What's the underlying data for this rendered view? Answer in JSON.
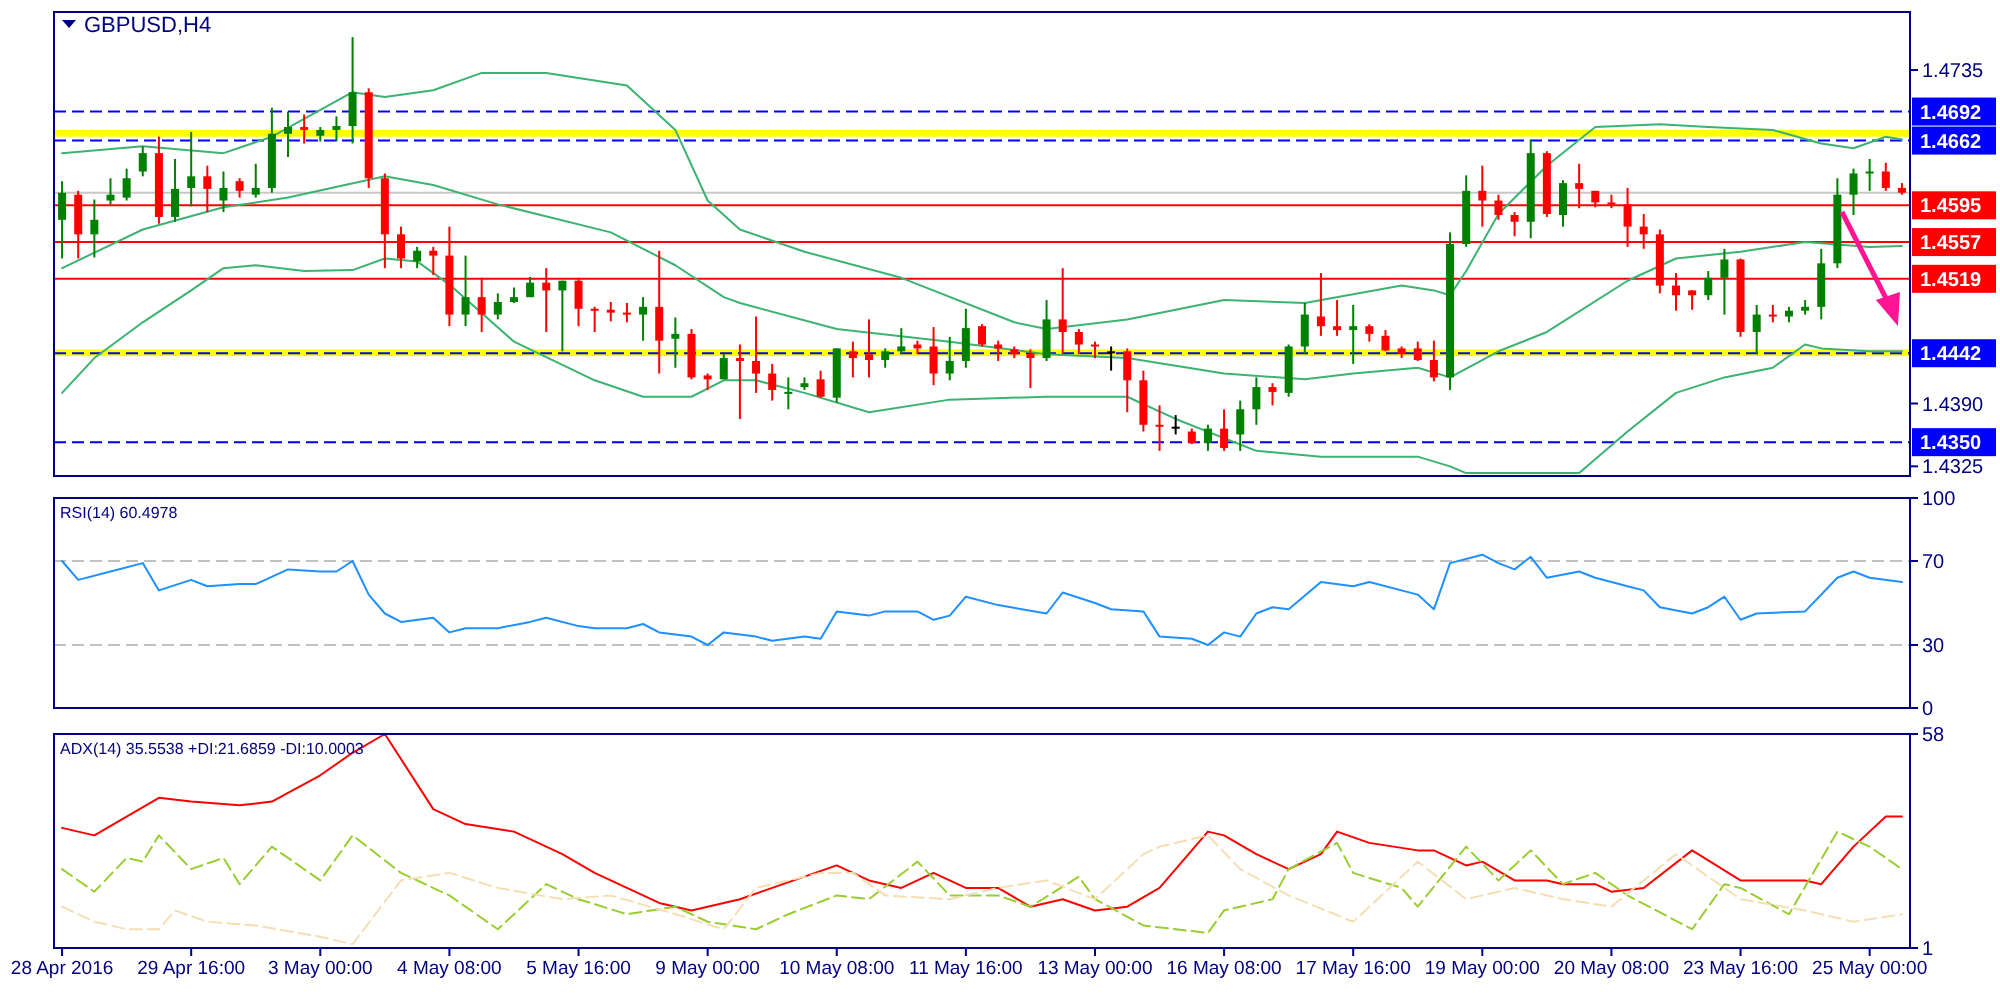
{
  "chart_data": [
    {
      "type": "candlestick",
      "title": "GBPUSD,H4",
      "categories": [
        null,
        null,
        null,
        null,
        null,
        null,
        null,
        null,
        null,
        null,
        null,
        null,
        null,
        null,
        null,
        null,
        null,
        null,
        null,
        null,
        null,
        null,
        null,
        null,
        null,
        null,
        null,
        null,
        null,
        null,
        null,
        null,
        null,
        null,
        null,
        null,
        null,
        null,
        null,
        null,
        null,
        null,
        null,
        null,
        null,
        null,
        null,
        null,
        null,
        null,
        null,
        null,
        null,
        null,
        null,
        null,
        null,
        null,
        null,
        null,
        null,
        null,
        null,
        null,
        null,
        null,
        null,
        null,
        null,
        null,
        null,
        null,
        null,
        null,
        null,
        null,
        null,
        null,
        null,
        null,
        null,
        null,
        null,
        null,
        null,
        null,
        null,
        null,
        null,
        null,
        null,
        null,
        null,
        null,
        null,
        null,
        null,
        null,
        null,
        null,
        null,
        null,
        null,
        null,
        null,
        null,
        null,
        null,
        null,
        null,
        null,
        null,
        null,
        null,
        null
      ],
      "ohlc": [
        [
          1.458,
          1.462,
          1.454,
          1.4608
        ],
        [
          1.4606,
          1.461,
          1.454,
          1.4565
        ],
        [
          1.4565,
          1.4601,
          1.4541,
          1.458
        ],
        [
          1.46,
          1.4623,
          1.4596,
          1.4606
        ],
        [
          1.4603,
          1.4633,
          1.46,
          1.4623
        ],
        [
          1.463,
          1.4656,
          1.4625,
          1.4649
        ],
        [
          1.4649,
          1.4666,
          1.4576,
          1.4583
        ],
        [
          1.4583,
          1.4643,
          1.4578,
          1.4612
        ],
        [
          1.4613,
          1.4671,
          1.4594,
          1.4625
        ],
        [
          1.4625,
          1.4636,
          1.4588,
          1.4612
        ],
        [
          1.46,
          1.463,
          1.4588,
          1.4613
        ],
        [
          1.462,
          1.4623,
          1.4603,
          1.461
        ],
        [
          1.4606,
          1.4638,
          1.4603,
          1.4613
        ],
        [
          1.4613,
          1.4696,
          1.4608,
          1.4669
        ],
        [
          1.4669,
          1.4692,
          1.4645,
          1.4676
        ],
        [
          1.4676,
          1.4689,
          1.4659,
          1.4673
        ],
        [
          1.4667,
          1.4676,
          1.4661,
          1.4673
        ],
        [
          1.4673,
          1.4687,
          1.4661,
          1.4677
        ],
        [
          1.4677,
          1.4769,
          1.4659,
          1.4712
        ],
        [
          1.4712,
          1.4716,
          1.4613,
          1.4623
        ],
        [
          1.4623,
          1.4628,
          1.453,
          1.4565
        ],
        [
          1.4565,
          1.4573,
          1.453,
          1.454
        ],
        [
          1.4537,
          1.4552,
          1.453,
          1.4548
        ],
        [
          1.4548,
          1.4552,
          1.4523,
          1.4543
        ],
        [
          1.4543,
          1.4573,
          1.447,
          1.4482
        ],
        [
          1.4482,
          1.4543,
          1.447,
          1.45
        ],
        [
          1.45,
          1.452,
          1.4464,
          1.4482
        ],
        [
          1.4482,
          1.4504,
          1.4477,
          1.4495
        ],
        [
          1.4495,
          1.451,
          1.4494,
          1.45
        ],
        [
          1.45,
          1.4521,
          1.45,
          1.4515
        ],
        [
          1.4515,
          1.453,
          1.4464,
          1.4507
        ],
        [
          1.4507,
          1.4517,
          1.4444,
          1.4517
        ],
        [
          1.4517,
          1.452,
          1.447,
          1.4488
        ],
        [
          1.4488,
          1.449,
          1.4464,
          1.4487
        ],
        [
          1.4487,
          1.4495,
          1.4475,
          1.4484
        ],
        [
          1.4484,
          1.4494,
          1.4474,
          1.4482
        ],
        [
          1.4482,
          1.45,
          1.4455,
          1.449
        ],
        [
          1.449,
          1.4548,
          1.4421,
          1.4455
        ],
        [
          1.4457,
          1.4479,
          1.4427,
          1.4462
        ],
        [
          1.4462,
          1.4467,
          1.4415,
          1.4417
        ],
        [
          1.4419,
          1.4421,
          1.4404,
          1.4415
        ],
        [
          1.4415,
          1.4441,
          1.4415,
          1.4437
        ],
        [
          1.4437,
          1.4451,
          1.4374,
          1.4434
        ],
        [
          1.4434,
          1.448,
          1.4401,
          1.4421
        ],
        [
          1.4421,
          1.4431,
          1.4393,
          1.4404
        ],
        [
          1.4401,
          1.4417,
          1.4384,
          1.4402
        ],
        [
          1.4407,
          1.4417,
          1.4404,
          1.4411
        ],
        [
          1.4415,
          1.4424,
          1.4396,
          1.4397
        ],
        [
          1.4396,
          1.4447,
          1.4391,
          1.4447
        ],
        [
          1.4444,
          1.4454,
          1.4417,
          1.4437
        ],
        [
          1.4441,
          1.4477,
          1.4417,
          1.4435
        ],
        [
          1.4435,
          1.4447,
          1.4427,
          1.4444
        ],
        [
          1.4444,
          1.4468,
          1.4441,
          1.4449
        ],
        [
          1.4451,
          1.4455,
          1.4441,
          1.4447
        ],
        [
          1.4449,
          1.4469,
          1.4409,
          1.4421
        ],
        [
          1.4421,
          1.4459,
          1.4414,
          1.4434
        ],
        [
          1.4434,
          1.4488,
          1.4427,
          1.4468
        ],
        [
          1.447,
          1.4472,
          1.4449,
          1.4451
        ],
        [
          1.4451,
          1.4455,
          1.4434,
          1.4447
        ],
        [
          1.4446,
          1.4449,
          1.4437,
          1.4441
        ],
        [
          1.4441,
          1.4446,
          1.4406,
          1.4437
        ],
        [
          1.4437,
          1.4497,
          1.4434,
          1.4477
        ],
        [
          1.4477,
          1.453,
          1.4441,
          1.4464
        ],
        [
          1.4464,
          1.4467,
          1.4441,
          1.4451
        ],
        [
          1.4451,
          1.4454,
          1.4437,
          1.4449
        ],
        [
          1.4444,
          1.4449,
          1.4424,
          1.4444
        ],
        [
          1.4444,
          1.4447,
          1.4381,
          1.4414
        ],
        [
          1.4414,
          1.4424,
          1.4361,
          1.4368
        ],
        [
          1.4368,
          1.4388,
          1.4341,
          1.4366
        ],
        [
          1.4366,
          1.4378,
          1.4358,
          1.4366
        ],
        [
          1.4361,
          1.4364,
          1.4348,
          1.4349
        ],
        [
          1.4349,
          1.4368,
          1.4341,
          1.4364
        ],
        [
          1.4364,
          1.4384,
          1.4341,
          1.4344
        ],
        [
          1.4358,
          1.4393,
          1.4341,
          1.4384
        ],
        [
          1.4384,
          1.4417,
          1.4368,
          1.4407
        ],
        [
          1.4407,
          1.4411,
          1.4388,
          1.4402
        ],
        [
          1.4401,
          1.4451,
          1.4397,
          1.4449
        ],
        [
          1.4449,
          1.4494,
          1.4441,
          1.4482
        ],
        [
          1.448,
          1.4525,
          1.446,
          1.447
        ],
        [
          1.447,
          1.4497,
          1.446,
          1.4466
        ],
        [
          1.4466,
          1.4492,
          1.4431,
          1.447
        ],
        [
          1.447,
          1.4472,
          1.4454,
          1.4462
        ],
        [
          1.446,
          1.4466,
          1.4444,
          1.4445
        ],
        [
          1.4447,
          1.4449,
          1.4437,
          1.4441
        ],
        [
          1.4447,
          1.4454,
          1.4434,
          1.4435
        ],
        [
          1.4435,
          1.4455,
          1.4413,
          1.4417
        ],
        [
          1.4417,
          1.4567,
          1.4404,
          1.4555
        ],
        [
          1.4555,
          1.4626,
          1.4552,
          1.461
        ],
        [
          1.461,
          1.4636,
          1.4573,
          1.46
        ],
        [
          1.46,
          1.4606,
          1.458,
          1.4585
        ],
        [
          1.4585,
          1.4588,
          1.4563,
          1.4578
        ],
        [
          1.4578,
          1.4663,
          1.4561,
          1.4649
        ],
        [
          1.4649,
          1.4651,
          1.4583,
          1.4586
        ],
        [
          1.4585,
          1.4621,
          1.4573,
          1.4618
        ],
        [
          1.4618,
          1.4638,
          1.4592,
          1.4612
        ],
        [
          1.461,
          1.461,
          1.4593,
          1.4598
        ],
        [
          1.4598,
          1.4606,
          1.4592,
          1.4596
        ],
        [
          1.4596,
          1.4613,
          1.4552,
          1.4573
        ],
        [
          1.4573,
          1.4586,
          1.455,
          1.4565
        ],
        [
          1.4565,
          1.457,
          1.4504,
          1.4512
        ],
        [
          1.4512,
          1.4525,
          1.4486,
          1.4502
        ],
        [
          1.4507,
          1.4507,
          1.4487,
          1.4502
        ],
        [
          1.4502,
          1.4527,
          1.4497,
          1.452
        ],
        [
          1.452,
          1.455,
          1.4482,
          1.4539
        ],
        [
          1.4539,
          1.454,
          1.4459,
          1.4464
        ],
        [
          1.4464,
          1.4492,
          1.4441,
          1.4482
        ],
        [
          1.4482,
          1.4492,
          1.4474,
          1.448
        ],
        [
          1.448,
          1.449,
          1.4474,
          1.4486
        ],
        [
          1.4486,
          1.4497,
          1.4482,
          1.449
        ],
        [
          1.449,
          1.455,
          1.4477,
          1.4535
        ],
        [
          1.4535,
          1.4623,
          1.453,
          1.4606
        ],
        [
          1.4606,
          1.4633,
          1.4585,
          1.4628
        ],
        [
          1.4628,
          1.4643,
          1.461,
          1.463
        ],
        [
          1.463,
          1.4639,
          1.461,
          1.4613
        ],
        [
          1.4613,
          1.4618,
          1.4606,
          1.4608
        ]
      ],
      "colors": [
        "#008000",
        "#ff0000",
        "#008000",
        "#008000",
        "#008000",
        "#008000",
        "#ff0000",
        "#008000",
        "#008000",
        "#ff0000",
        "#008000",
        "#ff0000",
        "#008000",
        "#008000",
        "#008000",
        "#ff0000",
        "#008000",
        "#008000",
        "#008000",
        "#ff0000",
        "#ff0000",
        "#ff0000",
        "#008000",
        "#ff0000",
        "#ff0000",
        "#008000",
        "#ff0000",
        "#008000",
        "#008000",
        "#008000",
        "#ff0000",
        "#008000",
        "#ff0000",
        "#ff0000",
        "#ff0000",
        "#ff0000",
        "#008000",
        "#ff0000",
        "#008000",
        "#ff0000",
        "#ff0000",
        "#008000",
        "#ff0000",
        "#ff0000",
        "#ff0000",
        "#008000",
        "#008000",
        "#ff0000",
        "#008000",
        "#ff0000",
        "#ff0000",
        "#008000",
        "#008000",
        "#ff0000",
        "#ff0000",
        "#008000",
        "#008000",
        "#ff0000",
        "#ff0000",
        "#ff0000",
        "#ff0000",
        "#008000",
        "#ff0000",
        "#ff0000",
        "#ff0000",
        "#000000",
        "#ff0000",
        "#ff0000",
        "#ff0000",
        "#000000",
        "#ff0000",
        "#008000",
        "#ff0000",
        "#008000",
        "#008000",
        "#ff0000",
        "#008000",
        "#008000",
        "#ff0000",
        "#ff0000",
        "#008000",
        "#ff0000",
        "#ff0000",
        "#ff0000",
        "#ff0000",
        "#ff0000",
        "#008000",
        "#008000",
        "#ff0000",
        "#ff0000",
        "#ff0000",
        "#008000",
        "#ff0000",
        "#008000",
        "#ff0000",
        "#ff0000",
        "#ff0000",
        "#ff0000",
        "#ff0000",
        "#ff0000",
        "#ff0000",
        "#ff0000",
        "#008000",
        "#008000",
        "#ff0000",
        "#008000",
        "#ff0000",
        "#008000",
        "#008000",
        "#008000",
        "#008000",
        "#008000",
        "#008000",
        "#ff0000",
        "#ff0000"
      ],
      "series": [
        {
          "type": "line",
          "color": "#3cb371",
          "values": [
            1.4649,
            null,
            null,
            null,
            null,
            1.4656,
            null,
            null,
            null,
            null,
            1.4649,
            null,
            null,
            1.4666,
            null,
            null,
            null,
            null,
            1.4712,
            null,
            1.4707,
            null,
            null,
            1.4714,
            null,
            null,
            1.4732,
            null,
            null,
            null,
            1.4732,
            null,
            null,
            null,
            null,
            1.4719,
            null,
            null,
            1.4673,
            null,
            1.46,
            null,
            1.457,
            null,
            null,
            null,
            1.4547,
            null,
            null,
            null,
            null,
            null,
            1.452,
            null,
            null,
            null,
            null,
            null,
            null,
            1.4474,
            null,
            1.4467,
            null,
            null,
            null,
            null,
            1.4477,
            null,
            null,
            null,
            null,
            null,
            1.4497,
            null,
            null,
            null,
            null,
            1.4494,
            null,
            null,
            null,
            null,
            null,
            1.4512,
            null,
            1.4507,
            1.4502,
            1.4527,
            null,
            1.4586,
            null,
            null,
            1.4636,
            null,
            null,
            1.4676,
            null,
            null,
            null,
            1.4679,
            null,
            null,
            1.4676,
            null,
            null,
            null,
            1.4673,
            null,
            null,
            1.4659,
            null,
            1.4654,
            null,
            1.4666,
            1.4663
          ]
        },
        {
          "type": "line",
          "color": "#3cb371",
          "values": [
            1.453,
            null,
            null,
            null,
            null,
            1.457,
            null,
            null,
            null,
            null,
            1.4593,
            null,
            null,
            null,
            1.4603,
            null,
            null,
            null,
            null,
            null,
            1.4625,
            null,
            null,
            1.4616,
            null,
            null,
            null,
            1.4596,
            null,
            null,
            null,
            null,
            null,
            null,
            1.4567,
            null,
            null,
            null,
            1.4533,
            null,
            null,
            1.45,
            1.4494,
            null,
            null,
            null,
            null,
            null,
            1.4467,
            null,
            null,
            null,
            null,
            null,
            null,
            1.4454,
            null,
            null,
            null,
            null,
            null,
            1.4441,
            null,
            null,
            null,
            null,
            1.4437,
            null,
            null,
            null,
            null,
            null,
            1.4421,
            null,
            null,
            null,
            null,
            1.4415,
            null,
            null,
            1.4421,
            null,
            null,
            null,
            1.4427,
            null,
            1.4417,
            null,
            null,
            1.4444,
            null,
            null,
            1.4464,
            null,
            null,
            null,
            null,
            1.4517,
            null,
            null,
            1.454,
            null,
            null,
            null,
            1.4547,
            null,
            null,
            null,
            1.4557,
            null,
            null,
            null,
            1.4552,
            null,
            1.4553
          ]
        },
        {
          "type": "line",
          "color": "#3cb371",
          "values": [
            1.4401,
            null,
            1.4437,
            null,
            null,
            1.4474,
            null,
            null,
            1.4507,
            null,
            1.453,
            null,
            1.4533,
            null,
            null,
            1.4527,
            null,
            null,
            1.4528,
            null,
            1.454,
            null,
            1.4537,
            null,
            1.4513,
            null,
            null,
            null,
            1.4454,
            null,
            null,
            null,
            null,
            1.4414,
            null,
            null,
            1.4397,
            null,
            null,
            1.4397,
            null,
            1.4414,
            null,
            1.4414,
            null,
            null,
            1.4401,
            null,
            null,
            null,
            1.4381,
            null,
            null,
            null,
            null,
            1.4394,
            null,
            null,
            null,
            null,
            null,
            1.4397,
            null,
            null,
            null,
            null,
            1.4397,
            null,
            null,
            1.4374,
            null,
            null,
            null,
            null,
            1.4341,
            null,
            null,
            null,
            1.4335,
            null,
            null,
            null,
            null,
            null,
            1.4335,
            null,
            1.4325,
            1.4318,
            null,
            null,
            null,
            null,
            null,
            null,
            1.4318,
            null,
            null,
            1.4361,
            null,
            null,
            1.4401,
            null,
            null,
            1.4417,
            null,
            null,
            1.4427,
            null,
            1.4451,
            1.4447,
            null,
            null,
            1.4444,
            null,
            1.4444
          ]
        }
      ],
      "ylim": [
        1.4315,
        1.4795
      ],
      "yticks": [
        1.4735,
        {
          "value": 1.439,
          "label": "1.4390"
        },
        1.4325
      ],
      "tick_labels": "y",
      "bands": [
        {
          "axis": "y",
          "from": 1.4666,
          "to": 1.4673,
          "color": "#ffff00"
        },
        {
          "axis": "y",
          "from": 1.4439,
          "to": 1.4446,
          "color": "#ffff00"
        }
      ],
      "ref_lines": [
        {
          "axis": "y",
          "value": 1.4608,
          "color": "#c8c8c8",
          "line_style": "solid"
        },
        {
          "axis": "y",
          "value": 1.4692,
          "label": "1.4692",
          "color": "#0000ff",
          "line_style": "dashed"
        },
        {
          "axis": "y",
          "value": 1.4662,
          "label": "1.4662",
          "color": "#0000ff",
          "line_style": "dashed"
        },
        {
          "axis": "y",
          "value": 1.4595,
          "label": "1.4595",
          "color": "#ff0000",
          "line_style": "solid"
        },
        {
          "axis": "y",
          "value": 1.4557,
          "label": "1.4557",
          "color": "#ff0000",
          "line_style": "solid"
        },
        {
          "axis": "y",
          "value": 1.4519,
          "label": "1.4519",
          "color": "#ff0000",
          "line_style": "solid"
        },
        {
          "axis": "y",
          "value": 1.4442,
          "label": "1.4442",
          "color": "#0000ff",
          "line_style": "dashed"
        },
        {
          "axis": "y",
          "value": 1.435,
          "label": "1.4350",
          "color": "#0000ff",
          "line_style": "dashed"
        }
      ]
    },
    {
      "type": "line",
      "title": "RSI(14) 60.4978",
      "categories": [
        null,
        null,
        null,
        null,
        null,
        null,
        null,
        null,
        null,
        null,
        null,
        null,
        null,
        null,
        null,
        null,
        null,
        null,
        null,
        null,
        null,
        null,
        null,
        null,
        null,
        null,
        null,
        null,
        null,
        null,
        null,
        null,
        null,
        null,
        null,
        null,
        null,
        null,
        null,
        null,
        null,
        null,
        null,
        null,
        null,
        null,
        null,
        null,
        null,
        null,
        null,
        null,
        null,
        null,
        null,
        null,
        null,
        null,
        null,
        null,
        null,
        null,
        null,
        null,
        null,
        null,
        null,
        null,
        null,
        null,
        null,
        null,
        null,
        null,
        null,
        null,
        null,
        null,
        null,
        null,
        null,
        null,
        null,
        null,
        null,
        null,
        null,
        null,
        null,
        null,
        null,
        null,
        null,
        null,
        null,
        null,
        null,
        null,
        null,
        null,
        null,
        null,
        null,
        null,
        null,
        null,
        null,
        null,
        null,
        null,
        null,
        null,
        null,
        null,
        null
      ],
      "series": [
        {
          "color": "#1e90ff",
          "values": [
            70,
            61,
            null,
            65,
            null,
            69,
            56,
            null,
            61,
            58,
            null,
            59,
            59,
            null,
            66,
            null,
            65,
            65,
            70,
            54,
            45,
            41,
            null,
            43,
            36,
            38,
            null,
            38,
            null,
            41,
            43,
            null,
            39,
            38,
            null,
            38,
            40,
            36,
            null,
            34,
            30,
            36,
            null,
            34,
            32,
            null,
            34,
            33,
            46,
            null,
            44,
            46,
            null,
            46,
            42,
            44,
            53,
            null,
            49,
            null,
            null,
            45,
            55,
            null,
            50,
            47,
            null,
            46,
            34,
            null,
            33,
            30,
            36,
            34,
            45,
            48,
            47,
            null,
            60,
            null,
            58,
            60,
            null,
            null,
            54,
            47,
            69,
            null,
            73,
            69,
            66,
            72,
            62,
            null,
            65,
            62,
            null,
            58,
            56,
            48,
            null,
            45,
            48,
            53,
            42,
            45,
            null,
            null,
            46,
            null,
            62,
            65,
            62,
            null,
            60
          ]
        }
      ],
      "ylim": [
        0,
        100
      ],
      "yticks": [
        0,
        30,
        70,
        100
      ],
      "tick_labels": "y",
      "ref_lines": [
        {
          "axis": "y",
          "value": 70,
          "color": "#c0c0c0",
          "line_style": "dashed"
        },
        {
          "axis": "y",
          "value": 30,
          "color": "#c0c0c0",
          "line_style": "dashed"
        }
      ]
    },
    {
      "type": "line",
      "title": "ADX(14) 35.5538 +DI:21.6859 -DI:10.0003",
      "categories": [
        "28 Apr 2016",
        null,
        null,
        null,
        null,
        null,
        null,
        null,
        "29 Apr 16:00",
        null,
        null,
        null,
        null,
        null,
        null,
        null,
        "3 May 00:00",
        null,
        null,
        null,
        null,
        null,
        null,
        null,
        "4 May 08:00",
        null,
        null,
        null,
        null,
        null,
        null,
        null,
        "5 May 16:00",
        null,
        null,
        null,
        null,
        null,
        null,
        null,
        "9 May 00:00",
        null,
        null,
        null,
        null,
        null,
        null,
        null,
        "10 May 08:00",
        null,
        null,
        null,
        null,
        null,
        null,
        null,
        "11 May 16:00",
        null,
        null,
        null,
        null,
        null,
        null,
        null,
        "13 May 00:00",
        null,
        null,
        null,
        null,
        null,
        null,
        null,
        "16 May 08:00",
        null,
        null,
        null,
        null,
        null,
        null,
        null,
        "17 May 16:00",
        null,
        null,
        null,
        null,
        null,
        null,
        null,
        "19 May 00:00",
        null,
        null,
        null,
        null,
        null,
        null,
        null,
        "20 May 08:00",
        null,
        null,
        null,
        null,
        null,
        null,
        null,
        "23 May 16:00",
        null,
        null,
        null,
        null,
        null,
        null,
        null,
        "25 May 00:00",
        null,
        null
      ],
      "series": [
        {
          "color": "#ff0000",
          "line_style": "solid",
          "values": [
            33,
            null,
            31,
            null,
            null,
            null,
            41,
            null,
            40,
            null,
            null,
            39,
            null,
            40,
            null,
            null,
            47,
            null,
            53,
            null,
            58,
            null,
            null,
            38,
            null,
            34,
            null,
            null,
            32,
            null,
            null,
            26,
            null,
            21,
            null,
            17,
            15,
            13,
            null,
            11,
            12,
            null,
            14,
            null,
            17,
            null,
            null,
            null,
            23,
            null,
            19,
            null,
            17,
            null,
            21,
            null,
            17,
            null,
            17,
            null,
            12,
            null,
            14,
            null,
            11,
            null,
            12,
            null,
            17,
            null,
            null,
            32,
            31,
            null,
            26,
            null,
            22,
            null,
            26,
            32,
            null,
            29,
            null,
            null,
            27,
            27,
            null,
            23,
            24,
            null,
            19,
            null,
            19,
            18,
            null,
            18,
            16,
            null,
            17,
            null,
            null,
            27,
            null,
            null,
            19,
            null,
            null,
            null,
            19,
            18,
            null,
            28,
            null,
            36,
            36
          ]
        },
        {
          "color": "#9acd32",
          "line_style": "dashed",
          "values": [
            22,
            null,
            16,
            null,
            25,
            24,
            31,
            null,
            22,
            null,
            25,
            18,
            null,
            28,
            null,
            null,
            19,
            null,
            31,
            null,
            null,
            21,
            null,
            null,
            15,
            null,
            null,
            6,
            null,
            null,
            18,
            null,
            14,
            null,
            null,
            10,
            null,
            null,
            12,
            null,
            8,
            null,
            null,
            6,
            null,
            10,
            null,
            null,
            15,
            null,
            14,
            null,
            null,
            24,
            null,
            15,
            null,
            null,
            15,
            null,
            12,
            null,
            null,
            20,
            14,
            null,
            null,
            7,
            null,
            null,
            null,
            5,
            11,
            null,
            null,
            14,
            22,
            null,
            null,
            29,
            21,
            null,
            null,
            17,
            12,
            null,
            null,
            28,
            null,
            19,
            null,
            27,
            null,
            18,
            null,
            21,
            null,
            15,
            null,
            null,
            null,
            6,
            null,
            18,
            17,
            null,
            null,
            10,
            null,
            null,
            32,
            null,
            28,
            null,
            22
          ]
        },
        {
          "color": "#f5deb3",
          "line_style": "dashed",
          "values": [
            12,
            null,
            8,
            null,
            6,
            null,
            6,
            11,
            null,
            8,
            null,
            null,
            7,
            null,
            null,
            null,
            4,
            null,
            2,
            null,
            null,
            19,
            null,
            null,
            21,
            null,
            null,
            17,
            null,
            null,
            null,
            14,
            null,
            null,
            15,
            null,
            null,
            null,
            10,
            null,
            null,
            6,
            null,
            17,
            null,
            null,
            null,
            21,
            null,
            21,
            null,
            15,
            null,
            null,
            null,
            14,
            null,
            null,
            17,
            null,
            null,
            19,
            null,
            null,
            14,
            null,
            null,
            26,
            28,
            null,
            null,
            31,
            null,
            22,
            null,
            null,
            15,
            null,
            null,
            null,
            8,
            null,
            null,
            null,
            24,
            null,
            null,
            14,
            null,
            null,
            17,
            null,
            null,
            14,
            null,
            null,
            12,
            null,
            null,
            null,
            26,
            null,
            null,
            null,
            14,
            null,
            null,
            null,
            11,
            null,
            null,
            8,
            null,
            null,
            10
          ]
        }
      ],
      "ylim": [
        1,
        58
      ],
      "yticks": [
        1,
        58
      ]
    }
  ]
}
